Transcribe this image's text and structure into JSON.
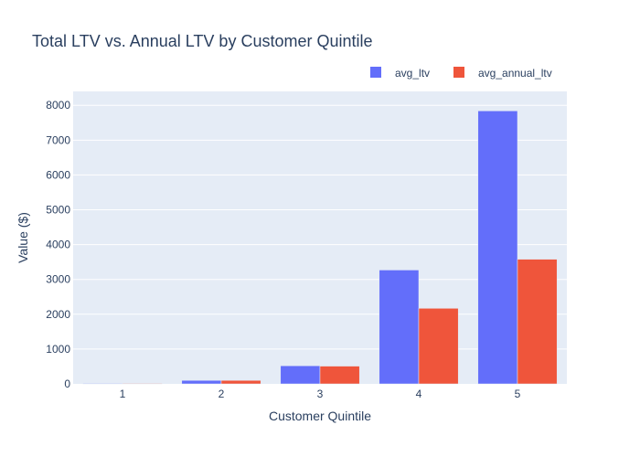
{
  "chart_data": {
    "type": "bar",
    "title": "Total LTV vs. Annual LTV by Customer Quintile",
    "xlabel": "Customer Quintile",
    "ylabel": "Value ($)",
    "categories": [
      "1",
      "2",
      "3",
      "4",
      "5"
    ],
    "series": [
      {
        "name": "avg_ltv",
        "color": "#636efa",
        "values": [
          15,
          100,
          520,
          3270,
          7840
        ]
      },
      {
        "name": "avg_annual_ltv",
        "color": "#ef553b",
        "values": [
          15,
          100,
          510,
          2170,
          3580
        ]
      }
    ],
    "ylim": [
      0,
      8400
    ],
    "yticks": [
      0,
      1000,
      2000,
      3000,
      4000,
      5000,
      6000,
      7000,
      8000
    ],
    "grid": true,
    "legend_position": "top-right",
    "plot_background": "#e5ecf6"
  }
}
